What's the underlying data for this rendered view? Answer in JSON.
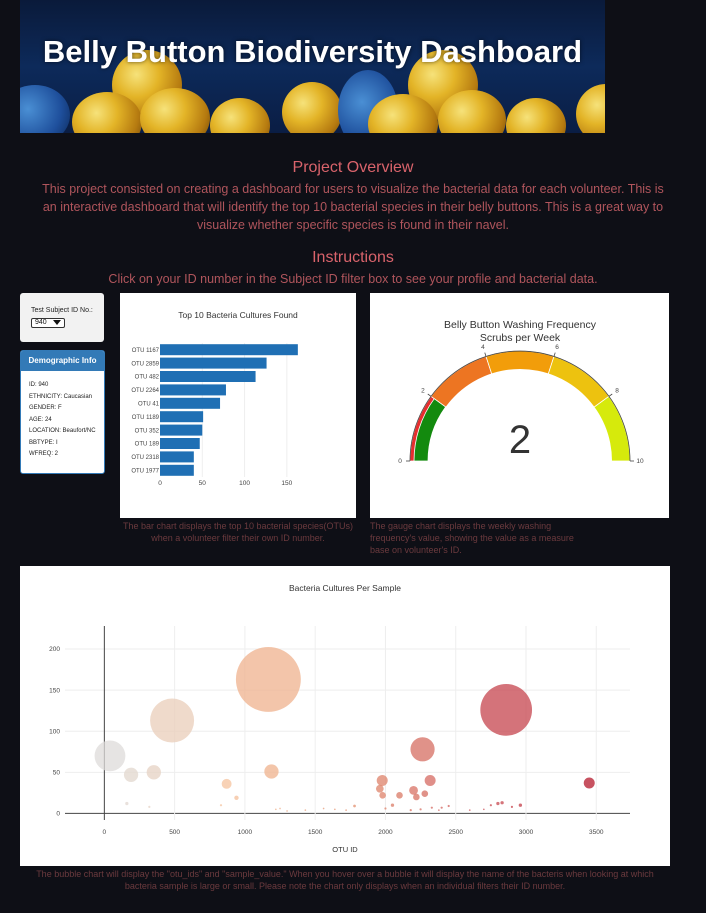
{
  "header": {
    "title": "Belly Button Biodiversity Dashboard"
  },
  "overview": {
    "heading": "Project Overview",
    "text": "This project consisted on creating a dashboard for users to visualize the bacterial data for each volunteer. This is an interactive dashboard that will identify the top 10 bacterial species in their belly buttons. This is a great way to visualize whether specific species is found in their navel."
  },
  "instructions": {
    "heading": "Instructions",
    "text": "Click on your ID number in the Subject ID filter box to see your profile and bacterial data."
  },
  "filter": {
    "label": "Test Subject ID No.:",
    "selected": "940"
  },
  "demographics": {
    "title": "Demographic Info",
    "rows": [
      "ID: 940",
      "ETHNICITY: Caucasian",
      "GENDER: F",
      "AGE: 24",
      "LOCATION: Beaufort/NC",
      "BBTYPE: I",
      "WFREQ: 2"
    ]
  },
  "captions": {
    "bar": "The bar chart displays the top 10 bacterial species(OTUs) when a volunteer filter their own ID number.",
    "gauge": "The gauge chart displays the weekly washing frequency's value, showing the value as a measure base on volunteer's ID.",
    "bubble": "The bubble chart will display the \"otu_ids\" and \"sample_value.\" When you hover over a bubble it will display the name of the bacteris when looking at which bacteria sample is large or small. Please note the chart only displays when an individual filters their ID number."
  },
  "chart_data": [
    {
      "type": "bar",
      "title": "Top 10 Bacteria Cultures Found",
      "orientation": "horizontal",
      "categories": [
        "OTU 1167",
        "OTU 2859",
        "OTU 482",
        "OTU 2264",
        "OTU 41",
        "OTU 1189",
        "OTU 352",
        "OTU 189",
        "OTU 2318",
        "OTU 1977"
      ],
      "values": [
        163,
        126,
        113,
        78,
        71,
        51,
        50,
        47,
        40,
        40
      ],
      "xticks": [
        0,
        50,
        100,
        150
      ],
      "xlim": [
        0,
        175
      ],
      "color": "#1f6fb4"
    },
    {
      "type": "gauge",
      "title": "Belly Button Washing Frequency",
      "subtitle": "Scrubs per Week",
      "value": 2,
      "range": [
        0,
        10
      ],
      "ticks": [
        0,
        2,
        4,
        6,
        8,
        10
      ],
      "steps": [
        {
          "range": [
            0,
            2
          ],
          "color": "#e62e2e"
        },
        {
          "range": [
            2,
            4
          ],
          "color": "#ed7522"
        },
        {
          "range": [
            4,
            6
          ],
          "color": "#f29d0a"
        },
        {
          "range": [
            6,
            8
          ],
          "color": "#edc20f"
        },
        {
          "range": [
            8,
            10
          ],
          "color": "#d6ea0c"
        }
      ],
      "bar_color": "#138a0e"
    },
    {
      "type": "scatter",
      "title": "Bacteria Cultures Per Sample",
      "xlabel": "OTU ID",
      "xticks": [
        0,
        500,
        1000,
        1500,
        2000,
        2500,
        3000,
        3500
      ],
      "yticks": [
        0,
        50,
        100,
        150,
        200
      ],
      "xlim": [
        -280,
        3740
      ],
      "ylim": [
        -8,
        228
      ],
      "colorscale": "Reds-ish",
      "points": [
        [
          40,
          70,
          28
        ],
        [
          190,
          47,
          13
        ],
        [
          352,
          50,
          13
        ],
        [
          482,
          113,
          40
        ],
        [
          1167,
          163,
          59
        ],
        [
          1189,
          51,
          13
        ],
        [
          870,
          36,
          9
        ],
        [
          940,
          19,
          4
        ],
        [
          2859,
          126,
          47
        ],
        [
          2264,
          78,
          22
        ],
        [
          2318,
          40,
          10
        ],
        [
          1977,
          40,
          10
        ],
        [
          1960,
          30,
          7
        ],
        [
          1980,
          22,
          6
        ],
        [
          2100,
          22,
          6
        ],
        [
          2200,
          28,
          8
        ],
        [
          2220,
          20,
          6
        ],
        [
          2280,
          24,
          6
        ],
        [
          3450,
          37,
          10
        ],
        [
          2050,
          10,
          3
        ],
        [
          2400,
          7,
          2
        ],
        [
          2450,
          9,
          2
        ],
        [
          2750,
          10,
          2
        ],
        [
          2800,
          12,
          3
        ],
        [
          2830,
          13,
          3
        ],
        [
          2900,
          8,
          2
        ],
        [
          2960,
          10,
          3
        ],
        [
          2000,
          6,
          2
        ],
        [
          2250,
          5,
          2
        ],
        [
          2330,
          7,
          2
        ],
        [
          2180,
          4,
          2
        ],
        [
          2380,
          4,
          1.5
        ],
        [
          2600,
          4,
          1.5
        ],
        [
          2700,
          5,
          1.5
        ],
        [
          1780,
          9,
          2.5
        ],
        [
          1560,
          6,
          1.5
        ],
        [
          1640,
          5,
          1.5
        ],
        [
          1720,
          4,
          1.5
        ],
        [
          1250,
          6,
          1.5
        ],
        [
          1300,
          3,
          1.5
        ],
        [
          160,
          12,
          3
        ],
        [
          320,
          8,
          2
        ],
        [
          830,
          10,
          2
        ],
        [
          1220,
          5,
          1.5
        ],
        [
          1430,
          4,
          1.5
        ]
      ]
    }
  ]
}
